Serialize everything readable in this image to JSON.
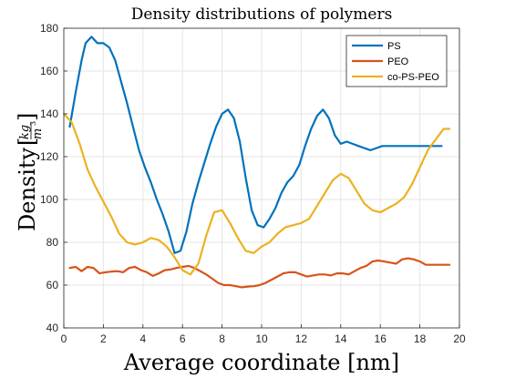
{
  "chart_data": {
    "type": "line",
    "title": "Density distributions of polymers",
    "xlabel": "Average coordinate [nm]",
    "ylabel": "Density",
    "ylabel_unit_num": "kg",
    "ylabel_unit_den": "m",
    "ylabel_unit_exp": "3",
    "xlim": [
      0,
      20
    ],
    "ylim": [
      40,
      180
    ],
    "xticks": [
      0,
      2,
      4,
      6,
      8,
      10,
      12,
      14,
      16,
      18,
      20
    ],
    "yticks": [
      40,
      60,
      80,
      100,
      120,
      140,
      160,
      180
    ],
    "grid": true,
    "legend_position": "top-right",
    "series": [
      {
        "name": "PS",
        "color": "#0072BD",
        "x": [
          0.3,
          0.6,
          0.9,
          1.1,
          1.4,
          1.7,
          2.0,
          2.3,
          2.6,
          2.9,
          3.2,
          3.5,
          3.8,
          4.1,
          4.4,
          4.7,
          5.0,
          5.3,
          5.6,
          5.9,
          6.2,
          6.5,
          6.8,
          7.1,
          7.4,
          7.7,
          8.0,
          8.3,
          8.6,
          8.9,
          9.2,
          9.5,
          9.8,
          10.1,
          10.4,
          10.7,
          11.0,
          11.3,
          11.6,
          11.9,
          12.2,
          12.5,
          12.8,
          13.1,
          13.4,
          13.7,
          14.0,
          14.3,
          14.6,
          14.9,
          15.2,
          15.5,
          15.8,
          16.1,
          16.4,
          16.7,
          17.0,
          17.3,
          17.6,
          17.9,
          18.2,
          18.5,
          18.8,
          19.1
        ],
        "values": [
          134,
          150,
          165,
          173,
          176,
          173,
          173,
          171,
          165,
          155,
          145,
          134,
          123,
          115,
          108,
          100,
          93,
          85,
          75,
          76,
          85,
          98,
          108,
          117,
          126,
          134,
          140,
          142,
          138,
          127,
          110,
          95,
          88,
          87,
          91,
          96,
          103,
          108,
          111,
          116,
          125,
          133,
          139,
          142,
          138,
          130,
          126,
          127,
          126,
          125,
          124,
          123,
          124,
          125,
          125,
          125,
          125,
          125,
          125,
          125,
          125,
          125,
          125,
          125
        ]
      },
      {
        "name": "PEO",
        "color": "#D95319",
        "x": [
          0.3,
          0.6,
          0.9,
          1.2,
          1.5,
          1.8,
          2.1,
          2.4,
          2.7,
          3.0,
          3.3,
          3.6,
          3.9,
          4.2,
          4.5,
          4.8,
          5.1,
          5.4,
          5.7,
          6.0,
          6.3,
          6.6,
          6.9,
          7.2,
          7.5,
          7.8,
          8.1,
          8.4,
          8.7,
          9.0,
          9.3,
          9.6,
          9.9,
          10.2,
          10.5,
          10.8,
          11.1,
          11.4,
          11.7,
          12.0,
          12.3,
          12.6,
          12.9,
          13.2,
          13.5,
          13.8,
          14.1,
          14.4,
          14.7,
          15.0,
          15.3,
          15.6,
          15.9,
          16.2,
          16.5,
          16.8,
          17.1,
          17.4,
          17.7,
          18.0,
          18.3,
          18.6,
          18.9,
          19.2,
          19.5
        ],
        "values": [
          68,
          68.5,
          66.5,
          68.5,
          68,
          65.5,
          66,
          66.3,
          66.5,
          66,
          68,
          68.5,
          67,
          66,
          64.3,
          65.5,
          67,
          67.3,
          68,
          68.5,
          69,
          68,
          66.5,
          65,
          63,
          61,
          60,
          60,
          59.5,
          59,
          59.3,
          59.5,
          60,
          61,
          62.5,
          64,
          65.5,
          66,
          66,
          65,
          64,
          64.5,
          65,
          65,
          64.5,
          65.5,
          65.5,
          65,
          66.5,
          68,
          69,
          71,
          71.5,
          71,
          70.5,
          70,
          72,
          72.5,
          72,
          71,
          69.5,
          69.5,
          69.5,
          69.5,
          69.5
        ]
      },
      {
        "name": "co-PS-PEO",
        "color": "#EDB120",
        "x": [
          0,
          0.4,
          0.8,
          1.2,
          1.6,
          2.0,
          2.4,
          2.8,
          3.2,
          3.6,
          4.0,
          4.4,
          4.8,
          5.2,
          5.6,
          6.0,
          6.4,
          6.8,
          7.2,
          7.6,
          8.0,
          8.4,
          8.8,
          9.2,
          9.6,
          10.0,
          10.4,
          10.8,
          11.2,
          11.6,
          12.0,
          12.4,
          12.8,
          13.2,
          13.6,
          14.0,
          14.4,
          14.8,
          15.2,
          15.6,
          16.0,
          16.4,
          16.8,
          17.2,
          17.6,
          18.0,
          18.4,
          18.8,
          19.2,
          19.5
        ],
        "values": [
          140,
          136,
          126,
          114,
          106,
          99,
          92,
          84,
          80,
          79,
          80,
          82,
          81,
          78,
          73,
          67,
          65,
          70,
          83,
          94,
          95,
          89,
          82,
          76,
          75,
          78,
          80,
          84,
          87,
          88,
          89,
          91,
          97,
          103,
          109,
          112,
          110,
          104,
          98,
          95,
          94,
          96,
          98,
          101,
          107,
          115,
          123,
          128,
          133,
          133
        ]
      }
    ],
    "legend": [
      "PS",
      "PEO",
      "co-PS-PEO"
    ]
  }
}
